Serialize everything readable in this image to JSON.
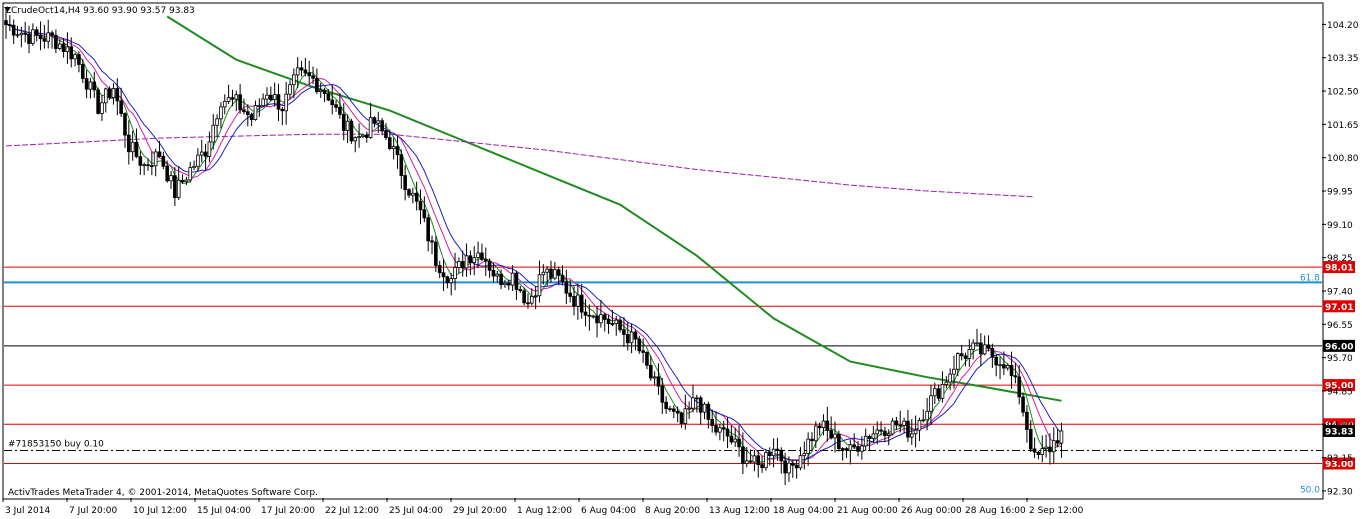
{
  "chart_data": {
    "type": "candlestick",
    "symbol_header": "LCrudeOct14,H4  93.60 93.90 93.57 93.83",
    "footer": "ActivTrades MetaTrader 4, © 2001-2014, MetaQuotes Software Corp.",
    "ylim": [
      92.12,
      104.72
    ],
    "y_ticks": [
      104.2,
      103.35,
      102.5,
      101.65,
      100.8,
      99.95,
      99.1,
      98.25,
      97.4,
      96.55,
      95.7,
      94.85,
      94.0,
      93.15,
      92.3
    ],
    "x_labels": [
      "3 Jul 2014",
      "7 Jul 20:00",
      "10 Jul 12:00",
      "15 Jul 04:00",
      "17 Jul 20:00",
      "22 Jul 12:00",
      "25 Jul 04:00",
      "29 Jul 20:00",
      "1 Aug 12:00",
      "6 Aug 04:00",
      "8 Aug 20:00",
      "13 Aug 12:00",
      "18 Aug 04:00",
      "21 Aug 00:00",
      "26 Aug 00:00",
      "28 Aug 16:00",
      "2 Sep 12:00"
    ],
    "current_price": 93.83,
    "horizontal_levels": [
      {
        "value": 98.01,
        "label": "98.01",
        "color": "#e00000"
      },
      {
        "value": 97.01,
        "label": "97.01",
        "color": "#e00000"
      },
      {
        "value": 96.0,
        "label": "96.00",
        "color": "#000000"
      },
      {
        "value": 95.0,
        "label": "95.00",
        "color": "#e00000"
      },
      {
        "value": 94.0,
        "label": "94.00",
        "color": "#e00000"
      },
      {
        "value": 93.0,
        "label": "93.00",
        "color": "#e00000"
      }
    ],
    "fibonacci": [
      {
        "value": 97.62,
        "label": "61.8",
        "color": "#1e8fd6"
      },
      {
        "value": 92.21,
        "label": "50.0",
        "color": "#1e8fd6"
      }
    ],
    "order_line": {
      "value": 93.33,
      "label": "#71853150 buy 0.10"
    },
    "close_path": [
      [
        0,
        104.2
      ],
      [
        6,
        103.9
      ],
      [
        12,
        103.85
      ],
      [
        18,
        103.4
      ],
      [
        24,
        102.1
      ],
      [
        28,
        102.6
      ],
      [
        32,
        101.1
      ],
      [
        36,
        100.6
      ],
      [
        40,
        100.9
      ],
      [
        44,
        99.9
      ],
      [
        48,
        100.5
      ],
      [
        52,
        101.0
      ],
      [
        56,
        102.3
      ],
      [
        60,
        102.2
      ],
      [
        64,
        101.8
      ],
      [
        68,
        102.5
      ],
      [
        72,
        102.1
      ],
      [
        76,
        102.9
      ],
      [
        80,
        102.8
      ],
      [
        84,
        102.4
      ],
      [
        88,
        101.6
      ],
      [
        92,
        101.3
      ],
      [
        96,
        101.7
      ],
      [
        100,
        101.2
      ],
      [
        104,
        100.2
      ],
      [
        108,
        99.4
      ],
      [
        112,
        98.2
      ],
      [
        116,
        97.7
      ],
      [
        120,
        98.3
      ],
      [
        124,
        98.4
      ],
      [
        128,
        97.7
      ],
      [
        132,
        97.8
      ],
      [
        136,
        97.1
      ],
      [
        140,
        97.9
      ],
      [
        144,
        97.7
      ],
      [
        148,
        97.2
      ],
      [
        152,
        96.9
      ],
      [
        156,
        96.7
      ],
      [
        160,
        96.4
      ],
      [
        164,
        96.1
      ],
      [
        168,
        95.2
      ],
      [
        172,
        94.4
      ],
      [
        176,
        94.0
      ],
      [
        180,
        94.7
      ],
      [
        184,
        93.9
      ],
      [
        188,
        93.7
      ],
      [
        192,
        93.2
      ],
      [
        196,
        92.9
      ],
      [
        200,
        93.5
      ],
      [
        204,
        92.8
      ],
      [
        208,
        93.4
      ],
      [
        212,
        94.0
      ],
      [
        216,
        93.6
      ],
      [
        220,
        93.3
      ],
      [
        224,
        93.7
      ],
      [
        228,
        93.9
      ],
      [
        232,
        94.0
      ],
      [
        236,
        93.8
      ],
      [
        240,
        94.5
      ],
      [
        244,
        95.0
      ],
      [
        248,
        95.7
      ],
      [
        252,
        95.9
      ],
      [
        256,
        95.8
      ],
      [
        260,
        95.6
      ],
      [
        264,
        94.8
      ],
      [
        268,
        93.1
      ],
      [
        272,
        93.4
      ],
      [
        275,
        93.83
      ]
    ],
    "moving_averages": [
      {
        "name": "MA 200",
        "color": "#1f8c1f",
        "width": 2,
        "points": [
          [
            42,
            104.4
          ],
          [
            60,
            103.3
          ],
          [
            80,
            102.6
          ],
          [
            100,
            102.0
          ],
          [
            120,
            101.2
          ],
          [
            140,
            100.4
          ],
          [
            160,
            99.6
          ],
          [
            180,
            98.3
          ],
          [
            200,
            96.7
          ],
          [
            220,
            95.6
          ],
          [
            240,
            95.2
          ],
          [
            255,
            94.95
          ],
          [
            275,
            94.6
          ]
        ]
      },
      {
        "name": "MA 800",
        "color": "#9b20a8",
        "width": 1,
        "dashed": true,
        "points": [
          [
            0,
            101.1
          ],
          [
            40,
            101.3
          ],
          [
            80,
            101.4
          ],
          [
            100,
            101.4
          ],
          [
            120,
            101.2
          ],
          [
            140,
            101.0
          ],
          [
            160,
            100.75
          ],
          [
            180,
            100.5
          ],
          [
            200,
            100.3
          ],
          [
            220,
            100.1
          ],
          [
            240,
            99.95
          ],
          [
            268,
            99.8
          ]
        ]
      },
      {
        "name": "MA fast",
        "color": "#1f8c1f",
        "width": 1,
        "lag": 2
      },
      {
        "name": "MA mid",
        "color": "#d61fa6",
        "width": 1,
        "lag": 4
      },
      {
        "name": "MA slow",
        "color": "#1f1fc8",
        "width": 1,
        "lag": 6
      }
    ]
  }
}
